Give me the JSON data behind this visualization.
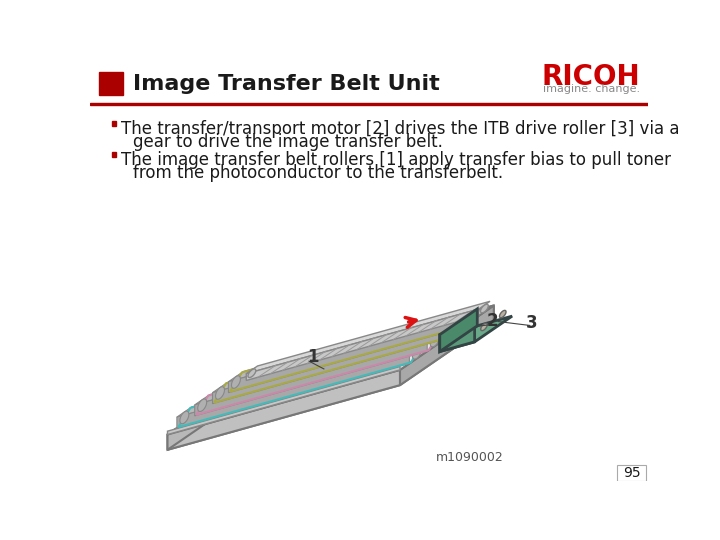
{
  "title": "Image Transfer Belt Unit",
  "title_fontsize": 16,
  "title_color": "#1a1a1a",
  "header_rect_color": "#aa0000",
  "header_line_color": "#aa0000",
  "ricoh_text": "RICOH",
  "ricoh_subtitle": "imagine. change.",
  "ricoh_color": "#cc0000",
  "ricoh_subtitle_color": "#888888",
  "bullet_color": "#aa0000",
  "bullet1_line1": "The transfer/transport motor [2] drives the ITB drive roller [3] via a",
  "bullet1_line2": "gear to drive the image transfer belt.",
  "bullet2_line1": "The image transfer belt rollers [1] apply transfer bias to pull toner",
  "bullet2_line2": "from the photoconductor to the transferbelt.",
  "body_fontsize": 12,
  "body_color": "#1a1a1a",
  "image_label": "m1090002",
  "page_number": "95",
  "bg_color": "#ffffff"
}
